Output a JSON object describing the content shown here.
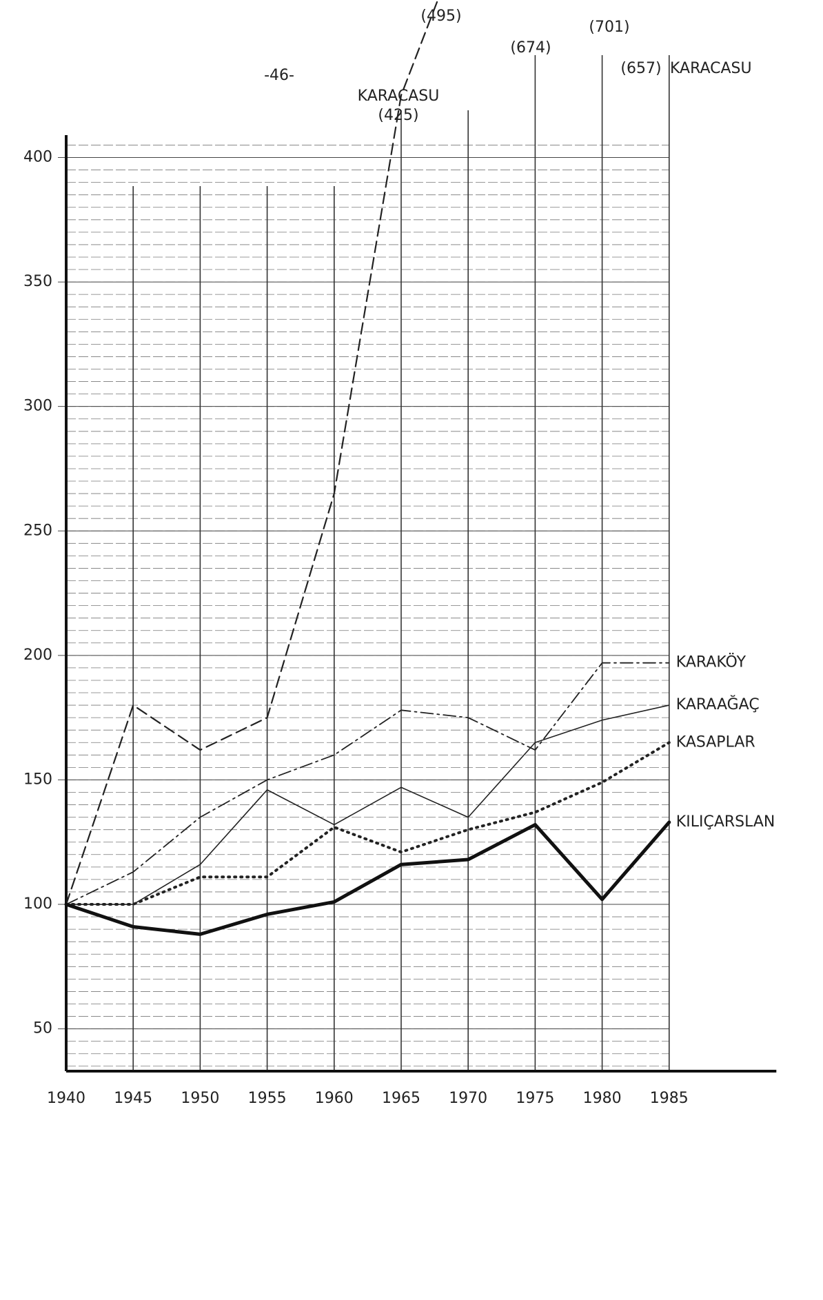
{
  "chart_data": {
    "type": "line",
    "page_number": "-46-",
    "annotations": [
      "KARACASU"
    ],
    "x": [
      1940,
      1945,
      1950,
      1955,
      1960,
      1965,
      1970,
      1975,
      1980,
      1985
    ],
    "xlim": [
      1940,
      1993
    ],
    "xticks": [
      1940,
      1945,
      1950,
      1955,
      1960,
      1965,
      1970,
      1975,
      1980,
      1985
    ],
    "ylim": [
      33,
      409
    ],
    "yticks": [
      50,
      100,
      150,
      200,
      250,
      300,
      350,
      400
    ],
    "minor_grid_step": 5,
    "grid": true,
    "series": [
      {
        "name": "KARACASU",
        "color": "#222",
        "line_style": "dashed",
        "values": [
          100,
          180,
          162,
          175,
          265,
          425,
          495,
          674,
          701,
          657
        ],
        "value_labels": [
          null,
          null,
          null,
          null,
          null,
          "(425)",
          "(495)",
          "(674)",
          "(701)",
          "(657)"
        ]
      },
      {
        "name": "KARAKÖY",
        "color": "#222",
        "line_style": "dashdot",
        "values": [
          100,
          113,
          135,
          150,
          160,
          178,
          175,
          162,
          197,
          197
        ]
      },
      {
        "name": "KARAAĞAÇ",
        "color": "#222",
        "line_style": "solid",
        "values": [
          100,
          100,
          116,
          146,
          132,
          147,
          135,
          165,
          174,
          180
        ]
      },
      {
        "name": "KASAPLAR",
        "color": "#222",
        "line_style": "dotted",
        "values": [
          100,
          100,
          111,
          111,
          131,
          121,
          130,
          137,
          149,
          165
        ]
      },
      {
        "name": "KILIÇARSLAN",
        "color": "#111",
        "line_style": "thick",
        "values": [
          100,
          91,
          88,
          96,
          101,
          116,
          118,
          132,
          102,
          133
        ]
      }
    ]
  }
}
